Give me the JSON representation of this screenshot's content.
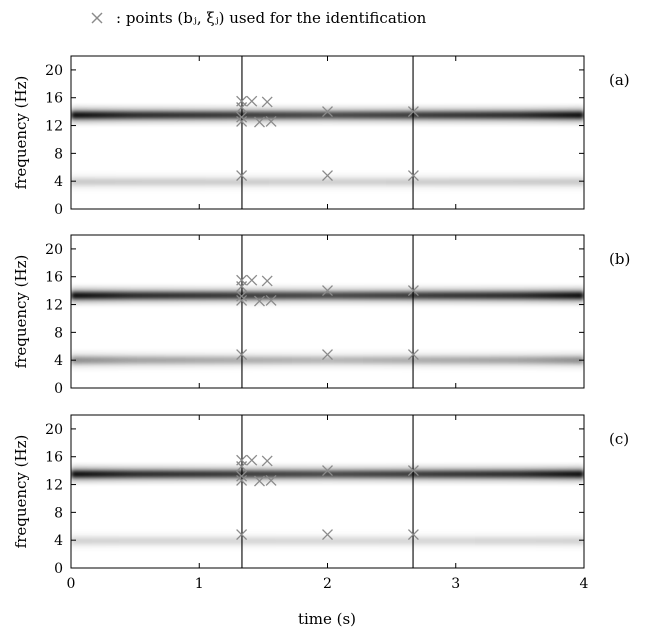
{
  "legend": {
    "marker_label": "×",
    "text": ": points (bⱼ, ξⱼ) used for the identification"
  },
  "colors": {
    "marker": "#8a8a8a",
    "ridge": "#000000",
    "background": "#ffffff"
  },
  "chart_data": {
    "type": "heatmap",
    "xlabel": "time (s)",
    "ylabel": "frequency (Hz)",
    "xlim": [
      0,
      4
    ],
    "ylim": [
      0,
      22
    ],
    "x_ticks": [
      "0",
      "1",
      "2",
      "3",
      "4"
    ],
    "y_ticks": [
      "0",
      "4",
      "8",
      "12",
      "16",
      "20"
    ],
    "vertical_lines_x": [
      1.333,
      2.667
    ],
    "panels": [
      {
        "label": "(a)",
        "ridges": [
          {
            "freq": 13.5,
            "strength": 0.95,
            "edge": 1.0
          },
          {
            "freq": 3.9,
            "strength": 0.18,
            "edge": 0.3
          }
        ],
        "points": [
          {
            "t": 1.33,
            "f": 15.5
          },
          {
            "t": 1.33,
            "f": 14.6
          },
          {
            "t": 1.33,
            "f": 13.2
          },
          {
            "t": 1.33,
            "f": 12.6
          },
          {
            "t": 1.41,
            "f": 15.5
          },
          {
            "t": 1.47,
            "f": 12.5
          },
          {
            "t": 1.53,
            "f": 15.4
          },
          {
            "t": 1.56,
            "f": 12.6
          },
          {
            "t": 2.0,
            "f": 14.0
          },
          {
            "t": 2.67,
            "f": 14.0
          },
          {
            "t": 1.33,
            "f": 4.8
          },
          {
            "t": 2.0,
            "f": 4.8
          },
          {
            "t": 2.67,
            "f": 4.8
          }
        ]
      },
      {
        "label": "(b)",
        "ridges": [
          {
            "freq": 13.3,
            "strength": 0.95,
            "edge": 1.0
          },
          {
            "freq": 4.0,
            "strength": 0.35,
            "edge": 1.0
          }
        ],
        "points": [
          {
            "t": 1.33,
            "f": 15.5
          },
          {
            "t": 1.33,
            "f": 14.6
          },
          {
            "t": 1.33,
            "f": 13.2
          },
          {
            "t": 1.33,
            "f": 12.6
          },
          {
            "t": 1.41,
            "f": 15.5
          },
          {
            "t": 1.47,
            "f": 12.5
          },
          {
            "t": 1.53,
            "f": 15.4
          },
          {
            "t": 1.56,
            "f": 12.6
          },
          {
            "t": 2.0,
            "f": 14.0
          },
          {
            "t": 2.67,
            "f": 14.0
          },
          {
            "t": 1.33,
            "f": 4.8
          },
          {
            "t": 2.0,
            "f": 4.8
          },
          {
            "t": 2.67,
            "f": 4.8
          }
        ]
      },
      {
        "label": "(c)",
        "ridges": [
          {
            "freq": 13.5,
            "strength": 0.95,
            "edge": 1.0
          },
          {
            "freq": 3.9,
            "strength": 0.15,
            "edge": 0.25
          }
        ],
        "points": [
          {
            "t": 1.33,
            "f": 15.5
          },
          {
            "t": 1.33,
            "f": 14.6
          },
          {
            "t": 1.33,
            "f": 13.2
          },
          {
            "t": 1.33,
            "f": 12.6
          },
          {
            "t": 1.41,
            "f": 15.5
          },
          {
            "t": 1.47,
            "f": 12.5
          },
          {
            "t": 1.53,
            "f": 15.4
          },
          {
            "t": 1.56,
            "f": 12.6
          },
          {
            "t": 2.0,
            "f": 14.0
          },
          {
            "t": 2.67,
            "f": 14.0
          },
          {
            "t": 1.33,
            "f": 4.8
          },
          {
            "t": 2.0,
            "f": 4.8
          },
          {
            "t": 2.67,
            "f": 4.8
          }
        ]
      }
    ]
  }
}
